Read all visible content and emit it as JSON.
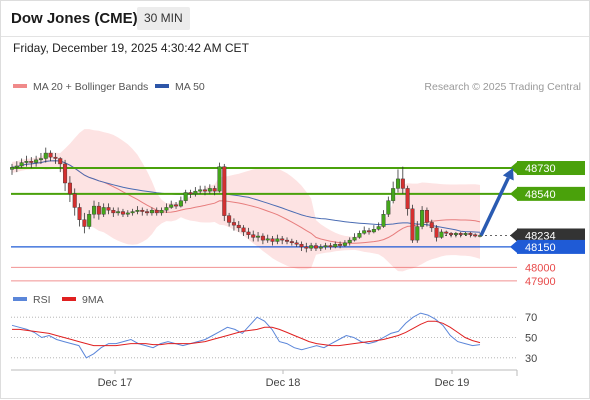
{
  "header": {
    "title": "Dow Jones (CME)",
    "timeframe": "30 MIN",
    "datetime": "Friday, December 19, 2025 4:30:42 AM CET"
  },
  "legend": {
    "ma20": "MA 20 + Bollinger Bands",
    "ma50": "MA 50",
    "research": "Research © 2025 Trading Central"
  },
  "colors": {
    "resistance": "#4aa10b",
    "support": "#1f5bd6",
    "weak_support": "#e84a4a",
    "ma20": "#e77d7d",
    "ma50": "#4a6cb3",
    "bollinger_fill": "#fde3e3",
    "candle_up": "#44a61b",
    "candle_down": "#d43030",
    "current_price_tag": "#333333",
    "forecast_arrow": "#2a5bb2",
    "rsi_line": "#5b86d9",
    "rsi_ma_line": "#e02020"
  },
  "chart_data": [
    {
      "type": "candlestick",
      "instrument": "Dow Jones (CME)",
      "timeframe": "30 MIN",
      "x_ticks": [
        "Dec 17",
        "Dec 18",
        "Dec 19"
      ],
      "current_price": 48234,
      "levels": [
        {
          "value": 48730,
          "label": "48730",
          "kind": "resistance"
        },
        {
          "value": 48540,
          "label": "48540",
          "kind": "resistance"
        },
        {
          "value": 48234,
          "label": "48234",
          "kind": "current"
        },
        {
          "value": 48150,
          "label": "48150",
          "kind": "support"
        },
        {
          "value": 48000,
          "label": "48000",
          "kind": "support"
        },
        {
          "value": 47900,
          "label": "47900",
          "kind": "support"
        }
      ],
      "ylim": [
        47870,
        49230
      ],
      "candles": [
        [
          48720,
          48735,
          48680,
          48760
        ],
        [
          48735,
          48745,
          48700,
          48780
        ],
        [
          48745,
          48770,
          48730,
          48800
        ],
        [
          48770,
          48780,
          48740,
          48820
        ],
        [
          48780,
          48770,
          48730,
          48810
        ],
        [
          48770,
          48790,
          48740,
          48820
        ],
        [
          48790,
          48800,
          48760,
          48840
        ],
        [
          48800,
          48840,
          48770,
          48880
        ],
        [
          48840,
          48810,
          48780,
          48860
        ],
        [
          48810,
          48800,
          48760,
          48840
        ],
        [
          48800,
          48760,
          48700,
          48810
        ],
        [
          48760,
          48620,
          48560,
          48790
        ],
        [
          48620,
          48540,
          48480,
          48670
        ],
        [
          48540,
          48440,
          48380,
          48580
        ],
        [
          48440,
          48350,
          48300,
          48470
        ],
        [
          48350,
          48300,
          48250,
          48400
        ],
        [
          48300,
          48390,
          48280,
          48420
        ],
        [
          48390,
          48450,
          48360,
          48490
        ],
        [
          48450,
          48390,
          48350,
          48480
        ],
        [
          48390,
          48440,
          48370,
          48470
        ],
        [
          48440,
          48420,
          48390,
          48470
        ],
        [
          48420,
          48400,
          48370,
          48440
        ],
        [
          48400,
          48410,
          48380,
          48440
        ],
        [
          48410,
          48390,
          48370,
          48430
        ],
        [
          48390,
          48400,
          48370,
          48420
        ],
        [
          48400,
          48410,
          48380,
          48430
        ],
        [
          48410,
          48420,
          48390,
          48450
        ],
        [
          48420,
          48410,
          48380,
          48440
        ],
        [
          48410,
          48400,
          48380,
          48430
        ],
        [
          48400,
          48420,
          48380,
          48440
        ],
        [
          48420,
          48400,
          48380,
          48440
        ],
        [
          48400,
          48420,
          48380,
          48440
        ],
        [
          48420,
          48440,
          48400,
          48470
        ],
        [
          48440,
          48460,
          48430,
          48490
        ],
        [
          48460,
          48450,
          48430,
          48480
        ],
        [
          48450,
          48490,
          48440,
          48520
        ],
        [
          48490,
          48550,
          48470,
          48570
        ],
        [
          48550,
          48540,
          48510,
          48570
        ],
        [
          48540,
          48560,
          48520,
          48590
        ],
        [
          48560,
          48570,
          48540,
          48600
        ],
        [
          48570,
          48560,
          48530,
          48600
        ],
        [
          48560,
          48580,
          48540,
          48610
        ],
        [
          48580,
          48560,
          48530,
          48600
        ],
        [
          48560,
          48740,
          48550,
          48770
        ],
        [
          48740,
          48380,
          48340,
          48760
        ],
        [
          48380,
          48330,
          48300,
          48400
        ],
        [
          48330,
          48310,
          48270,
          48360
        ],
        [
          48310,
          48290,
          48260,
          48340
        ],
        [
          48290,
          48260,
          48230,
          48310
        ],
        [
          48260,
          48240,
          48210,
          48290
        ],
        [
          48240,
          48220,
          48190,
          48270
        ],
        [
          48220,
          48230,
          48190,
          48260
        ],
        [
          48230,
          48200,
          48170,
          48250
        ],
        [
          48200,
          48210,
          48180,
          48240
        ],
        [
          48210,
          48190,
          48160,
          48230
        ],
        [
          48190,
          48210,
          48170,
          48240
        ],
        [
          48210,
          48200,
          48170,
          48230
        ],
        [
          48200,
          48190,
          48170,
          48220
        ],
        [
          48190,
          48180,
          48160,
          48210
        ],
        [
          48180,
          48170,
          48150,
          48200
        ],
        [
          48170,
          48150,
          48120,
          48190
        ],
        [
          48150,
          48140,
          48110,
          48180
        ],
        [
          48140,
          48160,
          48120,
          48180
        ],
        [
          48160,
          48140,
          48120,
          48180
        ],
        [
          48140,
          48150,
          48120,
          48170
        ],
        [
          48150,
          48160,
          48130,
          48180
        ],
        [
          48160,
          48150,
          48130,
          48180
        ],
        [
          48150,
          48170,
          48140,
          48190
        ],
        [
          48170,
          48160,
          48140,
          48190
        ],
        [
          48160,
          48180,
          48150,
          48200
        ],
        [
          48180,
          48200,
          48160,
          48220
        ],
        [
          48200,
          48220,
          48190,
          48250
        ],
        [
          48220,
          48250,
          48210,
          48270
        ],
        [
          48250,
          48270,
          48240,
          48300
        ],
        [
          48270,
          48260,
          48240,
          48290
        ],
        [
          48260,
          48280,
          48250,
          48310
        ],
        [
          48280,
          48300,
          48270,
          48330
        ],
        [
          48300,
          48390,
          48290,
          48420
        ],
        [
          48390,
          48490,
          48370,
          48520
        ],
        [
          48490,
          48580,
          48470,
          48630
        ],
        [
          48580,
          48650,
          48550,
          48720
        ],
        [
          48650,
          48580,
          48540,
          48740
        ],
        [
          48580,
          48430,
          48380,
          48600
        ],
        [
          48430,
          48200,
          48180,
          48460
        ],
        [
          48200,
          48300,
          48180,
          48340
        ],
        [
          48300,
          48420,
          48280,
          48450
        ],
        [
          48420,
          48330,
          48300,
          48440
        ],
        [
          48330,
          48290,
          48260,
          48350
        ],
        [
          48290,
          48220,
          48190,
          48310
        ],
        [
          48220,
          48260,
          48210,
          48280
        ],
        [
          48260,
          48250,
          48230,
          48270
        ],
        [
          48250,
          48240,
          48220,
          48260
        ],
        [
          48240,
          48250,
          48220,
          48260
        ],
        [
          48250,
          48240,
          48220,
          48260
        ],
        [
          48240,
          48250,
          48230,
          48260
        ],
        [
          48250,
          48240,
          48220,
          48260
        ],
        [
          48240,
          48230,
          48220,
          48250
        ],
        [
          48230,
          48234,
          48220,
          48250
        ]
      ],
      "forecast_arrow": {
        "from": 48234,
        "to": 48730
      },
      "series": [
        {
          "name": "MA 20 + Bollinger Bands"
        },
        {
          "name": "MA 50"
        }
      ]
    },
    {
      "type": "line",
      "indicator": "RSI",
      "series": [
        {
          "name": "RSI",
          "values": [
            62,
            60,
            58,
            55,
            50,
            52,
            48,
            46,
            44,
            42,
            30,
            34,
            40,
            44,
            44,
            46,
            48,
            44,
            42,
            40,
            44,
            46,
            44,
            42,
            44,
            46,
            48,
            52,
            56,
            60,
            58,
            54,
            62,
            70,
            66,
            58,
            46,
            44,
            40,
            38,
            40,
            42,
            40,
            44,
            48,
            52,
            50,
            46,
            44,
            46,
            50,
            54,
            56,
            64,
            70,
            74,
            72,
            68,
            62,
            52,
            46,
            44,
            42,
            43
          ]
        },
        {
          "name": "9MA",
          "values": [
            58,
            58,
            57,
            56,
            55,
            54,
            52,
            50,
            48,
            46,
            44,
            42,
            42,
            42,
            42,
            43,
            44,
            44,
            44,
            43,
            43,
            44,
            44,
            44,
            44,
            45,
            46,
            48,
            50,
            52,
            54,
            56,
            57,
            58,
            60,
            60,
            58,
            55,
            52,
            49,
            46,
            44,
            43,
            42,
            42,
            43,
            44,
            45,
            46,
            47,
            48,
            50,
            52,
            55,
            59,
            63,
            66,
            66,
            64,
            60,
            55,
            50,
            47,
            45
          ]
        }
      ],
      "ylim": [
        20,
        80
      ],
      "y_ticks": [
        70,
        50,
        30
      ]
    }
  ]
}
